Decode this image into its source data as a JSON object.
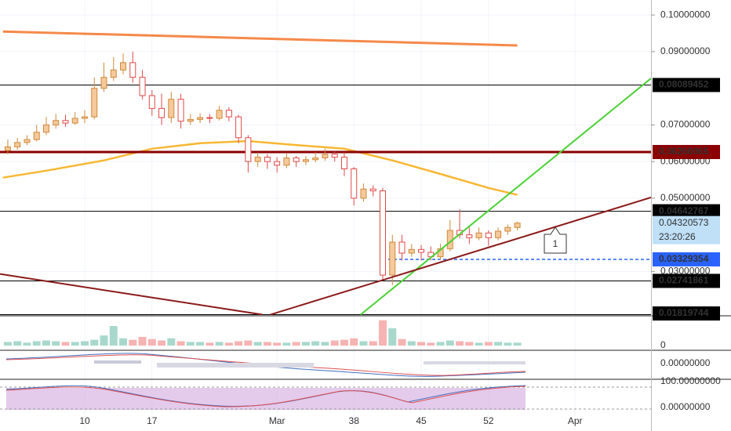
{
  "chart_data": {
    "type": "candlestick",
    "xlim": [
      1.19,
      68.9
    ],
    "ylim": [
      0.0181,
      0.1041
    ],
    "xticks": [
      10,
      17,
      {
        "value": 30,
        "label": "Mar"
      },
      38,
      45,
      52,
      {
        "value": 61,
        "label": "Apr"
      }
    ],
    "yticks": [
      {
        "value": 0.1,
        "label": "0.10000000"
      },
      {
        "value": 0.09,
        "label": "0.09000000"
      },
      {
        "value": 0.07,
        "label": "0.07000000"
      },
      {
        "value": 0.06,
        "label": "0.06000000"
      },
      {
        "value": 0.05,
        "label": "0.05000000"
      },
      {
        "value": 0.03,
        "label": "0.03000000"
      }
    ],
    "up_color": "#f5c99b",
    "up_edge": "#d0893a",
    "down_color": "#ffffff",
    "down_edge": "#e04848",
    "x": [
      2,
      3,
      4,
      5,
      6,
      7,
      8,
      9,
      10,
      11,
      12,
      13,
      14,
      15,
      16,
      17,
      18,
      19,
      20,
      21,
      22,
      23,
      24,
      25,
      26,
      27,
      28,
      29,
      30,
      31,
      32,
      33,
      34,
      35,
      36,
      37,
      38,
      39,
      40,
      41,
      42,
      43,
      44,
      45,
      46,
      47,
      48,
      49,
      50,
      51,
      52,
      53,
      54,
      55
    ],
    "candles": [
      [
        0.063,
        0.066,
        0.062,
        0.064
      ],
      [
        0.064,
        0.0665,
        0.0632,
        0.0652
      ],
      [
        0.0652,
        0.0672,
        0.0645,
        0.066
      ],
      [
        0.066,
        0.07,
        0.0655,
        0.068
      ],
      [
        0.068,
        0.0722,
        0.0672,
        0.07
      ],
      [
        0.07,
        0.073,
        0.069,
        0.0712
      ],
      [
        0.0712,
        0.0728,
        0.0695,
        0.0705
      ],
      [
        0.0705,
        0.0735,
        0.07,
        0.0718
      ],
      [
        0.0718,
        0.074,
        0.0705,
        0.0722
      ],
      [
        0.0722,
        0.083,
        0.0715,
        0.08
      ],
      [
        0.08,
        0.087,
        0.079,
        0.083
      ],
      [
        0.083,
        0.0885,
        0.082,
        0.085
      ],
      [
        0.085,
        0.0895,
        0.0838,
        0.087
      ],
      [
        0.087,
        0.09,
        0.0815,
        0.083
      ],
      [
        0.083,
        0.085,
        0.077,
        0.078
      ],
      [
        0.078,
        0.0795,
        0.0725,
        0.0745
      ],
      [
        0.0745,
        0.0785,
        0.07,
        0.072
      ],
      [
        0.072,
        0.079,
        0.0705,
        0.077
      ],
      [
        0.077,
        0.0785,
        0.069,
        0.071
      ],
      [
        0.071,
        0.073,
        0.07,
        0.0715
      ],
      [
        0.0715,
        0.0732,
        0.0705,
        0.072
      ],
      [
        0.072,
        0.073,
        0.0705,
        0.0718
      ],
      [
        0.0718,
        0.0752,
        0.0712,
        0.074
      ],
      [
        0.074,
        0.0748,
        0.071,
        0.0722
      ],
      [
        0.0722,
        0.0728,
        0.065,
        0.0665
      ],
      [
        0.0665,
        0.0672,
        0.057,
        0.06
      ],
      [
        0.06,
        0.0625,
        0.0585,
        0.0612
      ],
      [
        0.0612,
        0.062,
        0.058,
        0.06
      ],
      [
        0.06,
        0.0612,
        0.057,
        0.059
      ],
      [
        0.059,
        0.0622,
        0.0582,
        0.061
      ],
      [
        0.061,
        0.0615,
        0.0585,
        0.06
      ],
      [
        0.06,
        0.0615,
        0.059,
        0.0605
      ],
      [
        0.0605,
        0.0625,
        0.0598,
        0.061
      ],
      [
        0.061,
        0.0635,
        0.0602,
        0.062
      ],
      [
        0.062,
        0.063,
        0.06,
        0.0612
      ],
      [
        0.0612,
        0.0625,
        0.056,
        0.058
      ],
      [
        0.058,
        0.0585,
        0.048,
        0.05
      ],
      [
        0.05,
        0.054,
        0.049,
        0.0525
      ],
      [
        0.0525,
        0.0535,
        0.0505,
        0.052
      ],
      [
        0.052,
        0.0528,
        0.0275,
        0.029
      ],
      [
        0.029,
        0.04,
        0.0262,
        0.038
      ],
      [
        0.038,
        0.04,
        0.033,
        0.035
      ],
      [
        0.035,
        0.0375,
        0.034,
        0.036
      ],
      [
        0.036,
        0.0372,
        0.033,
        0.0352
      ],
      [
        0.0352,
        0.0368,
        0.033,
        0.034
      ],
      [
        0.034,
        0.0375,
        0.0332,
        0.0362
      ],
      [
        0.0362,
        0.044,
        0.0355,
        0.0412
      ],
      [
        0.0412,
        0.047,
        0.039,
        0.04
      ],
      [
        0.04,
        0.042,
        0.0375,
        0.0392
      ],
      [
        0.0392,
        0.042,
        0.0385,
        0.0405
      ],
      [
        0.0405,
        0.0412,
        0.037,
        0.0392
      ],
      [
        0.0392,
        0.042,
        0.0385,
        0.041
      ],
      [
        0.041,
        0.0428,
        0.04,
        0.042
      ],
      [
        0.042,
        0.0436,
        0.0412,
        0.0432
      ]
    ],
    "volume": [
      5,
      6,
      4,
      6,
      7,
      6,
      5,
      5,
      6,
      8,
      14,
      27,
      10,
      8,
      12,
      9,
      7,
      10,
      6,
      5,
      5,
      4,
      5,
      4,
      6,
      7,
      5,
      5,
      4,
      4,
      5,
      5,
      6,
      5,
      7,
      8,
      10,
      6,
      6,
      35,
      24,
      9,
      6,
      5,
      4,
      5,
      7,
      6,
      5,
      4,
      5,
      5,
      4,
      4
    ],
    "volume_ylim": [
      0,
      40
    ],
    "volume_yticks": [
      0
    ],
    "volume_up": "#a8d8cc",
    "volume_down": "#f6b3b3",
    "overlays": [
      {
        "color": "#f5894a",
        "width": 3,
        "x": [
          1.5,
          55
        ],
        "values": [
          0.0955,
          0.0917
        ]
      },
      {
        "color": "#f7b733",
        "width": 2.5,
        "x": [
          1.5,
          6,
          12,
          17,
          22,
          27,
          32,
          37,
          42,
          47,
          52,
          55
        ],
        "values": [
          0.0556,
          0.0575,
          0.0603,
          0.0635,
          0.065,
          0.0656,
          0.0645,
          0.0635,
          0.0603,
          0.0566,
          0.0528,
          0.0509
        ]
      }
    ],
    "trendlines": [
      {
        "color": "#4cd137",
        "x": [
          38.7,
          68.9
        ],
        "values": [
          0.0182,
          0.0827
        ]
      },
      {
        "color": "#8b1a1a",
        "x": [
          29.3,
          68.9
        ],
        "values": [
          0.0182,
          0.0502
        ]
      },
      {
        "color": "#8b1a1a",
        "x": [
          1.19,
          28.5
        ],
        "values": [
          0.0293,
          0.0182
        ]
      }
    ],
    "levels": [
      {
        "value": 0.08089452,
        "color": "#000000",
        "text": "#ffffff",
        "width": 1
      },
      {
        "value": 0.06260065,
        "color": "#8b0000",
        "text": "#ffffff",
        "width": 3
      },
      {
        "value": 0.04642767,
        "color": "#000000",
        "text": "#ffffff",
        "width": 1
      },
      {
        "value": 0.03329354,
        "color": "#2962ff",
        "text": "#ffffff",
        "width": 1.5,
        "dashed": true,
        "start": 41
      },
      {
        "value": 0.02741861,
        "color": "#000000",
        "text": "#ffffff",
        "width": 1
      },
      {
        "value": 0.01819744,
        "color": "#000000",
        "text": "#ffffff",
        "width": 1
      }
    ],
    "last_price": 0.04320573,
    "countdown": "23:20:26",
    "annotations": [
      "1"
    ],
    "macd_yticks": [
      {
        "value": 0,
        "label": "0.00000000"
      }
    ],
    "stoch_yticks": [
      {
        "value": 100,
        "label": "100.00000000"
      },
      {
        "value": 0,
        "label": "0.00000000"
      }
    ]
  }
}
